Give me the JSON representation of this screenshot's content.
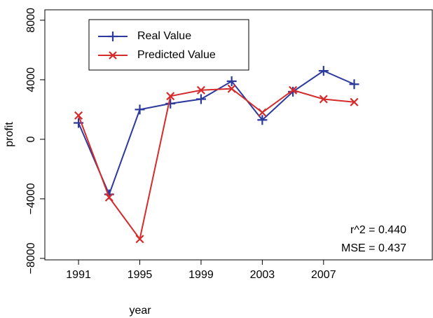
{
  "chart_data": {
    "type": "line",
    "x": [
      1991,
      1993,
      1995,
      1997,
      1999,
      2001,
      2003,
      2005,
      2007,
      2009
    ],
    "series": [
      {
        "name": "Real Value",
        "color": "#2b3a9c",
        "marker": "plus",
        "values": [
          1100,
          -3700,
          2000,
          2400,
          2700,
          3900,
          1300,
          3200,
          4600,
          3700
        ]
      },
      {
        "name": "Predicted Value",
        "color": "#d62b2b",
        "marker": "cross",
        "values": [
          1600,
          -3900,
          -6700,
          2900,
          3300,
          3400,
          1800,
          3300,
          2700,
          2500
        ]
      }
    ],
    "xlabel": "year",
    "ylabel": "profit",
    "xlim": [
      1988.8,
      2014.1
    ],
    "ylim": [
      -8100,
      8700
    ],
    "xticks": [
      1991,
      1995,
      1999,
      2003,
      2007
    ],
    "yticks": [
      {
        "value": -8000,
        "label": "−8000"
      },
      {
        "value": -4000,
        "label": "−4000"
      },
      0,
      4000,
      8000
    ],
    "legend": "top-left",
    "annotations": [
      "r^2 = 0.440",
      "MSE = 0.437"
    ]
  }
}
